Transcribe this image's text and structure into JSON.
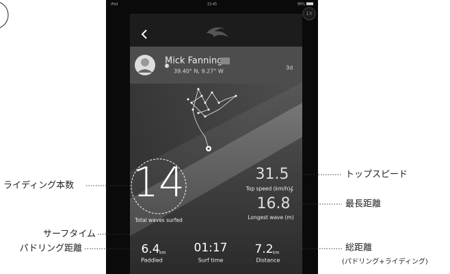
{
  "status_bar": {
    "device": "iPad",
    "time": "15:45",
    "battery": "99%"
  },
  "zoom_button": "1X",
  "profile": {
    "name": "Mick Fanning",
    "location": "39.40° N, 9.27° W",
    "age": "3d"
  },
  "stats": {
    "waves": {
      "value": "14",
      "label": "Total waves surfed"
    },
    "top_speed": {
      "value": "31.5",
      "label": "Top speed (km/h)"
    },
    "longest_wave": {
      "value": "16.8",
      "label": "Longest wave (m)"
    },
    "paddled": {
      "value": "6.4",
      "unit": "km",
      "label": "Paddled"
    },
    "surf_time": {
      "value": "01:17",
      "label": "Surf time"
    },
    "distance": {
      "value": "7.2",
      "unit": "km",
      "label": "Distance"
    }
  },
  "annotations": {
    "waves": "ライディング本数",
    "surf_time": "サーフタイム",
    "paddled": "パドリング距離",
    "top_speed": "トップスピード",
    "longest_wave": "最長距離",
    "distance": "総距離",
    "distance_note": "(パドリング+ライディング)"
  }
}
